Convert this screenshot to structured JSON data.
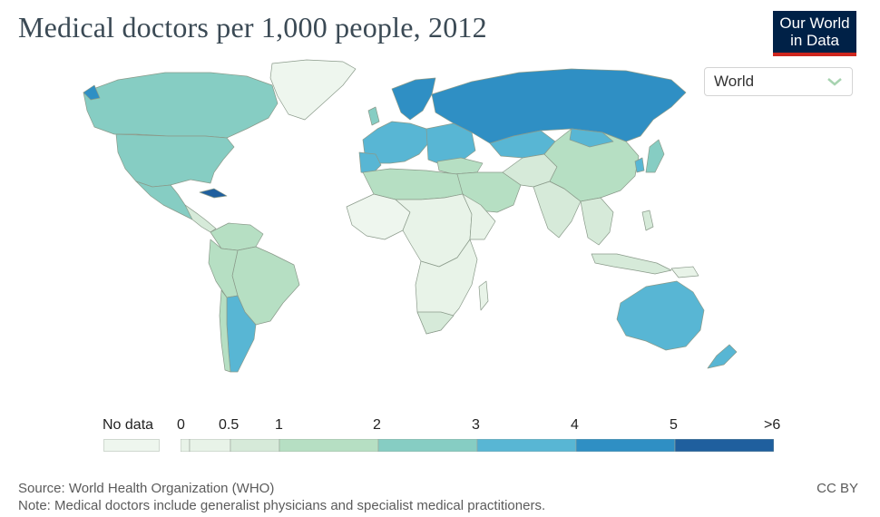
{
  "header": {
    "title": "Medical doctors per 1,000 people, 2012",
    "logo_line1": "Our World",
    "logo_line2": "in Data"
  },
  "region_selector": {
    "value": "World",
    "icon": "chevron-down-icon"
  },
  "colors": {
    "no_data": "#eef6ee",
    "bin_0_0_5": "#e8f3e8",
    "bin_0_5_1": "#d6ead9",
    "bin_1_2": "#b6dfc3",
    "bin_2_3": "#86cdc3",
    "bin_3_4": "#58b6d4",
    "bin_4_5": "#2f8fc4",
    "bin_5_6": "#1f5f9e",
    "ocean": "#ffffff",
    "border": "#8a9a8a"
  },
  "legend": {
    "no_data_label": "No data",
    "ticks": [
      "0",
      "0.5",
      "1",
      "2",
      "3",
      "4",
      "5",
      ">6"
    ],
    "bins": [
      {
        "from": 0,
        "to": 0.5
      },
      {
        "from": 0.5,
        "to": 1
      },
      {
        "from": 1,
        "to": 2
      },
      {
        "from": 2,
        "to": 3
      },
      {
        "from": 3,
        "to": 4
      },
      {
        "from": 4,
        "to": 5
      },
      {
        "from": 5,
        "to": 6
      }
    ]
  },
  "footer": {
    "source": "Source: World Health Organization (WHO)",
    "note": "Note: Medical doctors include generalist physicians and specialist medical practitioners.",
    "license": "CC BY"
  }
}
